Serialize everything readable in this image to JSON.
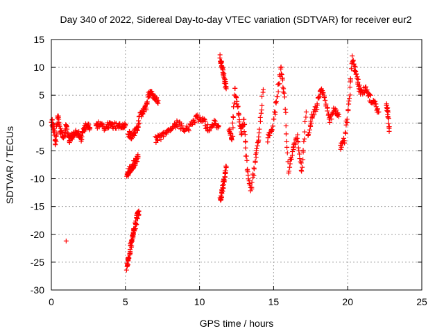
{
  "chart_data": {
    "type": "scatter",
    "title": "Day 340 of 2022, Sidereal Day-to-day VTEC variation (SDTVAR) for receiver eur2",
    "xlabel": "GPS time / hours",
    "ylabel": "SDTVAR / TECUs",
    "xlim": [
      0,
      25
    ],
    "ylim": [
      -30,
      15
    ],
    "x_ticks": [
      0,
      5,
      10,
      15,
      20,
      25
    ],
    "y_ticks": [
      -30,
      -25,
      -20,
      -15,
      -10,
      -5,
      0,
      5,
      10,
      15
    ],
    "x_tick_labels": [
      "0",
      "5",
      "10",
      "15",
      "20",
      "25"
    ],
    "y_tick_labels": [
      "-30",
      "-25",
      "-20",
      "-15",
      "-10",
      "-5",
      "0",
      "5",
      "10",
      "15"
    ],
    "grid": true,
    "marker": "+",
    "color": "#ff0000",
    "series": [
      {
        "name": "SDTVAR",
        "segments": [
          {
            "x": [
              0.0,
              0.15,
              0.3,
              0.45,
              0.6,
              0.8,
              1.0,
              1.2,
              1.4,
              1.6,
              1.8,
              2.0,
              2.2,
              2.4,
              2.6
            ],
            "y": [
              0.5,
              -1.0,
              -3.5,
              1.5,
              -1.5,
              -2.5,
              -0.5,
              -3.0,
              -2.5,
              -2.0,
              -1.5,
              -2.8,
              -1.0,
              -0.5,
              -0.8
            ]
          },
          {
            "x": [
              3.0,
              3.3,
              3.6,
              3.9,
              4.2,
              4.5,
              4.8,
              5.0
            ],
            "y": [
              -0.5,
              -0.2,
              -0.8,
              -0.3,
              -0.6,
              -0.4,
              -0.7,
              -0.5
            ]
          },
          {
            "x": [
              5.1,
              5.25,
              5.4,
              5.55,
              5.7,
              5.85
            ],
            "y": [
              -9.5,
              -8.5,
              -8.0,
              -7.5,
              -6.8,
              -6.0
            ]
          },
          {
            "x": [
              5.1,
              5.2,
              5.3,
              5.4,
              5.5,
              5.6,
              5.7,
              5.8,
              5.9
            ],
            "y": [
              -26.0,
              -24.5,
              -23.0,
              -21.5,
              -20.0,
              -19.0,
              -18.0,
              -16.8,
              -15.8
            ]
          },
          {
            "x": [
              5.2,
              5.4,
              5.6,
              5.8,
              6.0,
              6.2,
              6.4,
              6.6,
              6.8,
              7.0,
              7.2
            ],
            "y": [
              -2.0,
              -2.3,
              -1.8,
              -1.0,
              1.5,
              2.0,
              3.0,
              5.5,
              5.0,
              4.5,
              3.5
            ]
          },
          {
            "x": [
              7.0,
              7.4,
              7.8,
              8.2,
              8.6,
              9.0,
              9.4,
              9.8,
              10.2,
              10.6,
              11.0,
              11.3
            ],
            "y": [
              -3.0,
              -2.5,
              -1.5,
              -0.5,
              0.0,
              -1.5,
              -0.5,
              1.0,
              0.5,
              -1.0,
              0.0,
              -0.5
            ]
          },
          {
            "x": [
              11.4,
              11.5,
              11.6,
              11.7,
              11.8
            ],
            "y": [
              11.8,
              10.5,
              9.0,
              7.5,
              6.5
            ]
          },
          {
            "x": [
              11.4,
              11.5,
              11.6,
              11.7,
              11.8
            ],
            "y": [
              -13.8,
              -12.5,
              -11.0,
              -9.5,
              -8.0
            ]
          },
          {
            "x": [
              12.0,
              12.2,
              12.4,
              12.6,
              12.8,
              13.0,
              13.2,
              13.5,
              13.8,
              14.0,
              14.3
            ],
            "y": [
              -1.0,
              -3.0,
              6.0,
              2.5,
              -2.0,
              0.5,
              -8.0,
              -12.0,
              -6.0,
              -2.5,
              6.0
            ]
          },
          {
            "x": [
              14.6,
              14.9,
              15.2,
              15.5,
              15.7,
              16.0,
              16.3,
              16.6,
              16.9,
              17.2
            ],
            "y": [
              -3.0,
              -1.0,
              4.0,
              10.0,
              5.5,
              -8.5,
              -5.0,
              -2.5,
              -9.0,
              2.0
            ]
          },
          {
            "x": [
              17.3,
              17.6,
              17.9,
              18.2,
              18.5,
              18.8,
              19.1,
              19.4
            ],
            "y": [
              -2.5,
              1.0,
              3.0,
              6.5,
              4.0,
              0.5,
              2.5,
              1.5
            ]
          },
          {
            "x": [
              19.5,
              19.8,
              20.1,
              20.3,
              20.5,
              20.7,
              20.9,
              21.2,
              21.5,
              21.8,
              22.1
            ],
            "y": [
              -4.5,
              -3.0,
              4.0,
              11.5,
              9.5,
              7.0,
              5.5,
              6.0,
              4.5,
              3.5,
              2.0
            ]
          },
          {
            "x": [
              22.6,
              22.7,
              22.8
            ],
            "y": [
              3.5,
              2.0,
              -1.5
            ]
          },
          {
            "x": [
              1.0
            ],
            "y": [
              -21.2
            ]
          }
        ]
      }
    ]
  }
}
